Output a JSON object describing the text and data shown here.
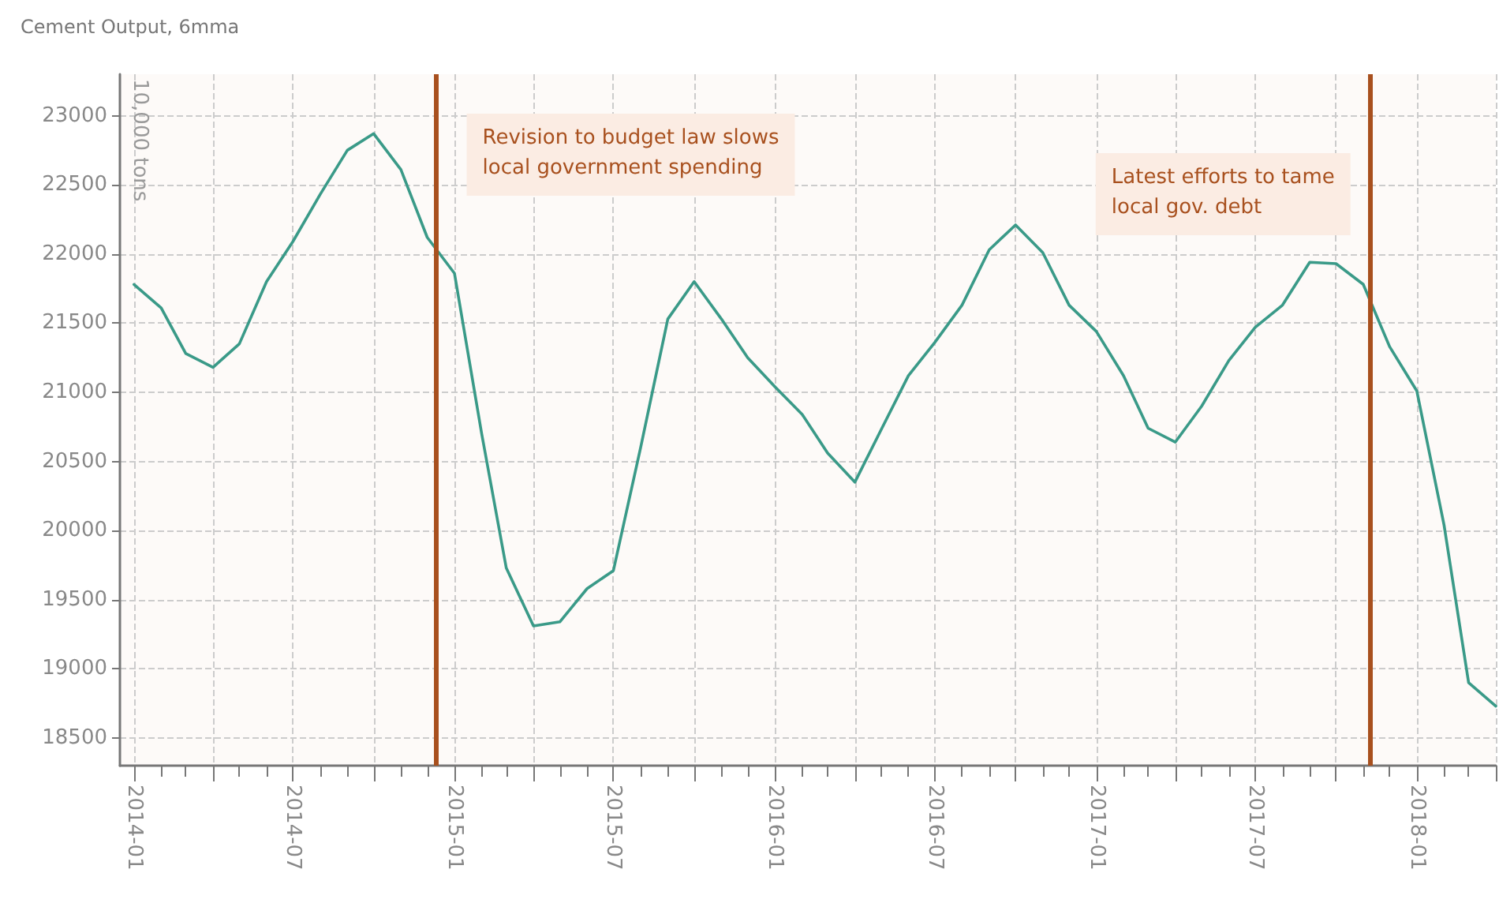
{
  "chart_data": {
    "type": "line",
    "title": "Cement Output, 6mma",
    "ylabel": "10,000 tons",
    "x": [
      "2014-01",
      "2014-02",
      "2014-03",
      "2014-04",
      "2014-05",
      "2014-06",
      "2014-07",
      "2014-08",
      "2014-09",
      "2014-10",
      "2014-11",
      "2014-12",
      "2015-01",
      "2015-02",
      "2015-03",
      "2015-04",
      "2015-05",
      "2015-06",
      "2015-07",
      "2015-08",
      "2015-09",
      "2015-10",
      "2015-11",
      "2015-12",
      "2016-01",
      "2016-02",
      "2016-03",
      "2016-04",
      "2016-05",
      "2016-06",
      "2016-07",
      "2016-08",
      "2016-09",
      "2016-10",
      "2016-11",
      "2016-12",
      "2017-01",
      "2017-02",
      "2017-03",
      "2017-04",
      "2017-05",
      "2017-06",
      "2017-07",
      "2017-08",
      "2017-09",
      "2017-10",
      "2017-11",
      "2017-12",
      "2018-01",
      "2018-02",
      "2018-03",
      "2018-04"
    ],
    "series": [
      {
        "color": "#3a9a88",
        "values": [
          21780,
          21610,
          21280,
          21180,
          21350,
          21800,
          22090,
          22430,
          22750,
          22870,
          22610,
          22120,
          21860,
          20700,
          19730,
          19310,
          19340,
          19580,
          19710,
          20600,
          21530,
          21800,
          21530,
          21250,
          21040,
          20840,
          20560,
          20350,
          20730,
          21120,
          21360,
          21630,
          22030,
          22210,
          22010,
          21630,
          21440,
          21120,
          20740,
          20640,
          20900,
          21230,
          21470,
          21630,
          21940,
          21930,
          21780,
          21330,
          21010,
          20040,
          18900,
          18730
        ]
      }
    ],
    "xlim": [
      "2013-12-16",
      "2018-04-01"
    ],
    "xticks": [
      "2014-01",
      {
        "value": "2014-04",
        "label": null
      },
      "2014-07",
      {
        "value": "2014-10",
        "label": null
      },
      "2015-01",
      {
        "value": "2015-04",
        "label": null
      },
      "2015-07",
      {
        "value": "2015-10",
        "label": null
      },
      "2016-01",
      {
        "value": "2016-04",
        "label": null
      },
      "2016-07",
      {
        "value": "2016-10",
        "label": null
      },
      "2017-01",
      {
        "value": "2017-04",
        "label": null
      },
      "2017-07",
      {
        "value": "2017-10",
        "label": null
      },
      "2018-01",
      {
        "value": "2018-04",
        "label": null
      }
    ],
    "ylim": [
      18300,
      23300
    ],
    "yticks": [
      18500,
      19000,
      19500,
      20000,
      20500,
      21000,
      21500,
      22000,
      22500,
      23000
    ],
    "ref_lines": [
      {
        "axis": "x",
        "value": "2014-12-10",
        "label": "Revision to budget law slows\nlocal government spending",
        "color": "#a8501e"
      },
      {
        "axis": "x",
        "value": "2017-11-08",
        "label": "Latest efforts to tame\nlocal gov. debt",
        "color": "#a8501e"
      }
    ],
    "grid": true
  }
}
